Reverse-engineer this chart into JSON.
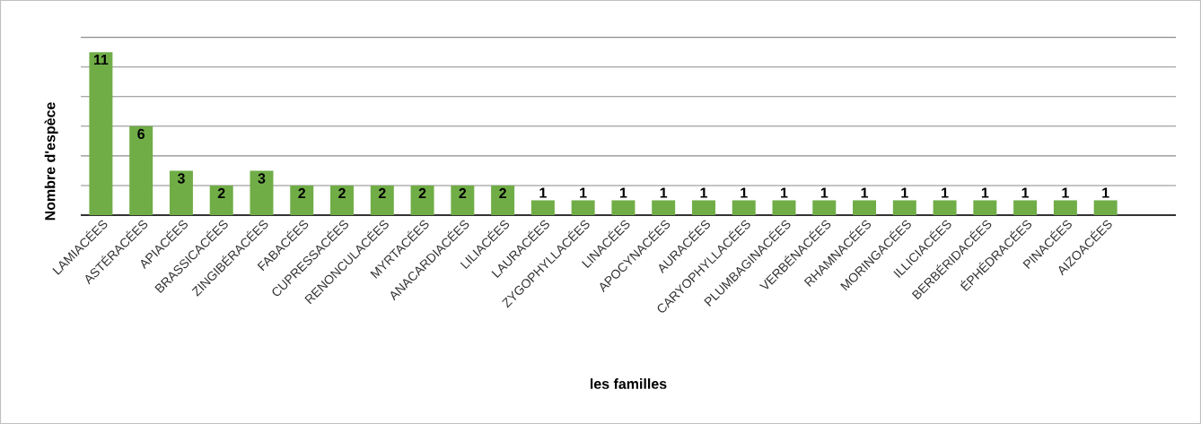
{
  "chart_data": {
    "type": "bar",
    "xlabel": "les familles",
    "ylabel": "Nombre d'espèce",
    "categories": [
      "LAMIACÉES",
      "ASTÉRACÉES",
      "APIACÉES",
      "BRASSICACÉES",
      "ZINGIBÉRACÉES",
      "FABACÉES",
      "CUPRESSACÉES",
      "RENONCULACÉES",
      "MYRTACÉES",
      "ANACARDIACÉES",
      "LILIACÉES",
      "LAURACÉES",
      "ZYGOPHYLLACÉES",
      "LINACÉES",
      "APOCYNACÉES",
      "AURACÉES",
      "CARYOPHYLLACÉES",
      "PLUMBAGINACÉES",
      "VERBÉNACÉES",
      "RHAMNACÉES",
      "MORINGACÉES",
      "ILLICIACÉES",
      "BERBÉRIDACÉES",
      "ÉPHÉDRACÉES",
      "PINACÉES",
      "AIZOACÉES"
    ],
    "values": [
      11,
      6,
      3,
      2,
      3,
      2,
      2,
      2,
      2,
      2,
      2,
      1,
      1,
      1,
      1,
      1,
      1,
      1,
      1,
      1,
      1,
      1,
      1,
      1,
      1,
      1
    ],
    "color": "#70ad47",
    "data_labels": true,
    "grid": "y",
    "tick_labels": "x"
  }
}
